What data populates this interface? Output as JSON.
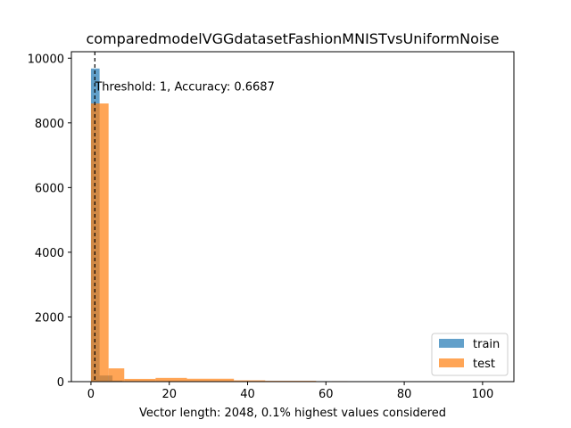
{
  "chart_data": {
    "type": "histogram",
    "title": "comparedmodelVGGdatasetFashionMNISTvsUniformNoise",
    "xlabel": "Vector length: 2048, 0.1% highest values considered",
    "ylabel": "",
    "xlim": [
      -5,
      108
    ],
    "ylim": [
      0,
      10200
    ],
    "xticks": [
      0,
      20,
      40,
      60,
      80,
      100
    ],
    "yticks": [
      0,
      2000,
      4000,
      6000,
      8000,
      10000
    ],
    "legend_position": "lower-right",
    "threshold_line": {
      "x": 1,
      "style": "dashed",
      "color": "#000000"
    },
    "annotation": "Threshold: 1, Accuracy: 0.6687",
    "series": [
      {
        "name": "train",
        "color": "#1f77b4",
        "opacity": 0.7,
        "bins": [
          {
            "x0": 0,
            "x1": 2.2,
            "count": 9680
          },
          {
            "x0": 2.2,
            "x1": 5.5,
            "count": 190
          },
          {
            "x0": 5.5,
            "x1": 8,
            "count": 30
          }
        ]
      },
      {
        "name": "test",
        "color": "#ff7f0e",
        "opacity": 0.7,
        "bins": [
          {
            "x0": 0,
            "x1": 4.5,
            "count": 8600
          },
          {
            "x0": 4.5,
            "x1": 8.5,
            "count": 410
          },
          {
            "x0": 8.5,
            "x1": 16.5,
            "count": 85
          },
          {
            "x0": 16.5,
            "x1": 24.5,
            "count": 115
          },
          {
            "x0": 24.5,
            "x1": 36.5,
            "count": 90
          },
          {
            "x0": 36.5,
            "x1": 44.5,
            "count": 40
          },
          {
            "x0": 44.5,
            "x1": 57.5,
            "count": 25
          },
          {
            "x0": 57.5,
            "x1": 61.5,
            "count": 5
          },
          {
            "x0": 61.5,
            "x1": 65.5,
            "count": 15
          }
        ]
      }
    ]
  }
}
